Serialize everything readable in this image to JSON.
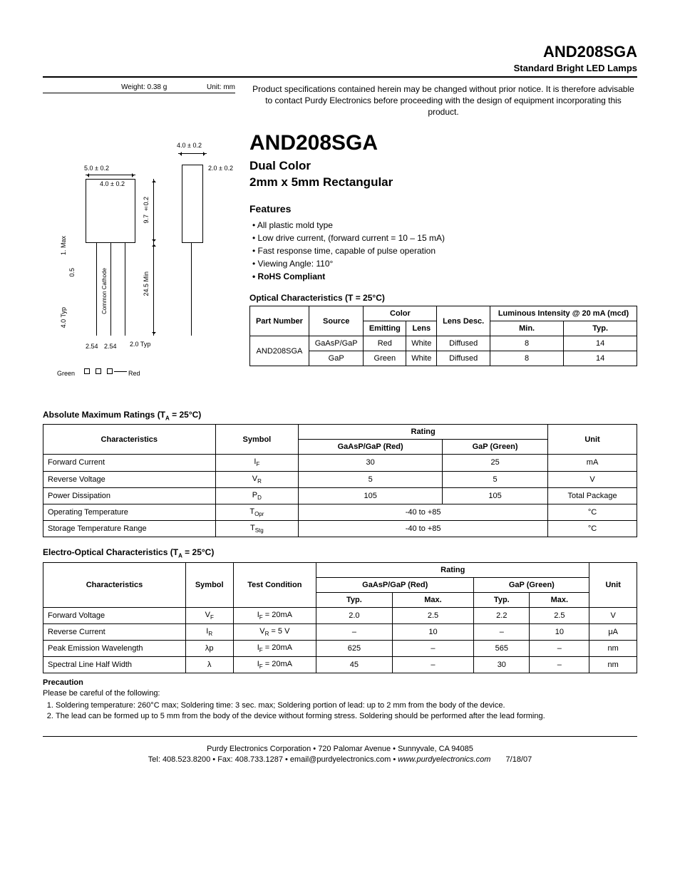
{
  "header": {
    "part_no": "AND208SGA",
    "subtitle": "Standard Bright LED Lamps"
  },
  "diagram": {
    "weight_label": "Weight:",
    "weight": "0.38 g",
    "unit_label": "Unit:",
    "unit": "mm",
    "dims": {
      "top_width": "4.0 ± 0.2",
      "body_width": "5.0 ± 0.2",
      "inner_width": "4.0 ± 0.2",
      "shoulder": "2.0 ± 0.2",
      "body_height": "9.7 ±0.2",
      "lead_len": "24.5 Min",
      "pitch1": "2.54",
      "pitch2": "2.54",
      "lead_w": "2.0 Typ",
      "depth": "4.0 Typ",
      "thick": "0.5",
      "standoff": "1. Max",
      "cathode_label": "Common Cathode",
      "green": "Green",
      "red": "Red"
    }
  },
  "notice": "Product specifications contained herein may be changed without prior notice. It is therefore advisable to contact Purdy Electronics before proceeding with the design of equipment incorporating this product.",
  "title": {
    "name": "AND208SGA",
    "line1": "Dual Color",
    "line2": "2mm x 5mm Rectangular"
  },
  "features_heading": "Features",
  "features": [
    "All plastic mold type",
    "Low drive current, (forward current = 10 – 15 mA)",
    "Fast response time, capable of pulse operation",
    "Viewing Angle: 110°",
    "RoHS Compliant"
  ],
  "optical": {
    "title": "Optical Characteristics (T = 25°C)",
    "headers": {
      "part": "Part Number",
      "source": "Source",
      "color": "Color",
      "emitting": "Emitting",
      "lens": "Lens",
      "lens_desc": "Lens Desc.",
      "lum": "Luminous Intensity @ 20 mA (mcd)",
      "min": "Min.",
      "typ": "Typ."
    },
    "part": "AND208SGA",
    "rows": [
      {
        "source": "GaAsP/GaP",
        "emitting": "Red",
        "lens": "White",
        "desc": "Diffused",
        "min": "8",
        "typ": "14"
      },
      {
        "source": "GaP",
        "emitting": "Green",
        "lens": "White",
        "desc": "Diffused",
        "min": "8",
        "typ": "14"
      }
    ]
  },
  "abs_max": {
    "title": "Absolute Maximum Ratings (T",
    "title_sub": "A",
    "title_rest": " = 25°C)",
    "headers": {
      "char": "Characteristics",
      "symbol": "Symbol",
      "rating": "Rating",
      "red": "GaAsP/GaP (Red)",
      "green": "GaP (Green)",
      "unit": "Unit"
    },
    "rows": [
      {
        "char": "Forward Current",
        "sym": "I",
        "sub": "F",
        "red": "30",
        "green": "25",
        "unit": "mA",
        "merged": false
      },
      {
        "char": "Reverse Voltage",
        "sym": "V",
        "sub": "R",
        "red": "5",
        "green": "5",
        "unit": "V",
        "merged": false
      },
      {
        "char": "Power Dissipation",
        "sym": "P",
        "sub": "D",
        "red": "105",
        "green": "105",
        "unit": "Total Package",
        "merged": false
      },
      {
        "char": "Operating Temperature",
        "sym": "T",
        "sub": "Opr",
        "red": "-40 to +85",
        "green": "",
        "unit": "°C",
        "merged": true
      },
      {
        "char": "Storage Temperature Range",
        "sym": "T",
        "sub": "Stg",
        "red": "-40 to +85",
        "green": "",
        "unit": "°C",
        "merged": true
      }
    ]
  },
  "electro": {
    "title": "Electro-Optical Characteristics (T",
    "title_sub": "A",
    "title_rest": " = 25°C)",
    "headers": {
      "char": "Characteristics",
      "symbol": "Symbol",
      "cond": "Test Condition",
      "rating": "Rating",
      "red": "GaAsP/GaP (Red)",
      "green": "GaP (Green)",
      "typ": "Typ.",
      "max": "Max.",
      "unit": "Unit"
    },
    "rows": [
      {
        "char": "Forward Voltage",
        "sym": "V",
        "sub": "F",
        "cond_pre": "I",
        "cond_sub": "F",
        "cond_post": " = 20mA",
        "rt": "2.0",
        "rm": "2.5",
        "gt": "2.2",
        "gm": "2.5",
        "unit": "V"
      },
      {
        "char": "Reverse Current",
        "sym": "I",
        "sub": "R",
        "cond_pre": "V",
        "cond_sub": "R",
        "cond_post": " = 5 V",
        "rt": "–",
        "rm": "10",
        "gt": "–",
        "gm": "10",
        "unit": "μA"
      },
      {
        "char": "Peak Emission Wavelength",
        "sym": "λp",
        "sub": "",
        "cond_pre": "I",
        "cond_sub": "F",
        "cond_post": " = 20mA",
        "rt": "625",
        "rm": "–",
        "gt": "565",
        "gm": "–",
        "unit": "nm"
      },
      {
        "char": "Spectral Line Half Width",
        "sym": "λ",
        "sub": "",
        "cond_pre": "I",
        "cond_sub": "F",
        "cond_post": " = 20mA",
        "rt": "45",
        "rm": "–",
        "gt": "30",
        "gm": "–",
        "unit": "nm"
      }
    ]
  },
  "precaution": {
    "heading": "Precaution",
    "intro": "Please be careful of the following:",
    "items": [
      "Soldering temperature: 260°C max; Soldering time: 3 sec. max; Soldering portion of lead: up to 2 mm from the body of the device.",
      "The lead can be formed up to 5 mm from the body of the device without forming stress. Soldering should be performed after the lead forming."
    ]
  },
  "footer": {
    "line1": "Purdy Electronics Corporation  •  720 Palomar Avenue  •  Sunnyvale, CA 94085",
    "line2_pre": "Tel: 408.523.8200  •  Fax: 408.733.1287  •  email@purdyelectronics.com  •  ",
    "site": "www.purdyelectronics.com",
    "date": "7/18/07"
  }
}
